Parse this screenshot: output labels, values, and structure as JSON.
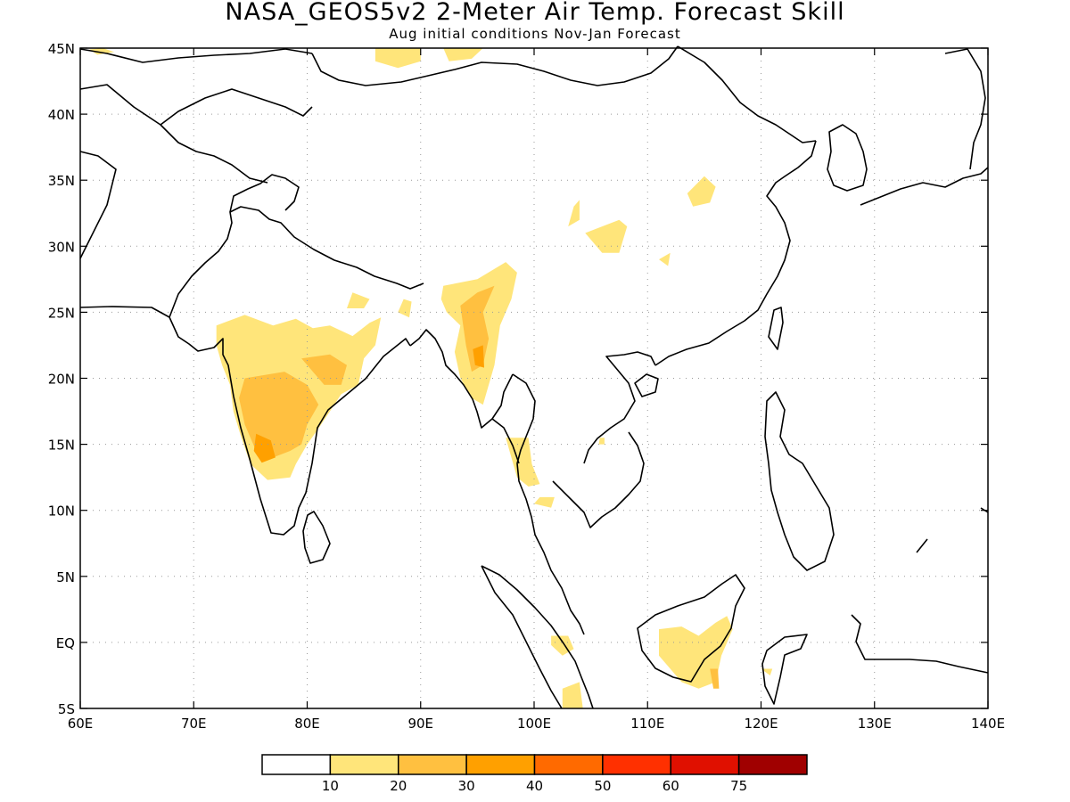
{
  "title": "NASA_GEOS5v2 2-Meter Air Temp. Forecast Skill",
  "subtitle": "Aug initial conditions  Nov-Jan Forecast",
  "map": {
    "lon_range": [
      60,
      140
    ],
    "lat_range": [
      -5,
      45
    ],
    "x_ticks": [
      {
        "lon": 60,
        "label": "60E"
      },
      {
        "lon": 70,
        "label": "70E"
      },
      {
        "lon": 80,
        "label": "80E"
      },
      {
        "lon": 90,
        "label": "90E"
      },
      {
        "lon": 100,
        "label": "100E"
      },
      {
        "lon": 110,
        "label": "110E"
      },
      {
        "lon": 120,
        "label": "120E"
      },
      {
        "lon": 130,
        "label": "130E"
      },
      {
        "lon": 140,
        "label": "140E"
      }
    ],
    "y_ticks": [
      {
        "lat": 45,
        "label": "45N"
      },
      {
        "lat": 40,
        "label": "40N"
      },
      {
        "lat": 35,
        "label": "35N"
      },
      {
        "lat": 30,
        "label": "30N"
      },
      {
        "lat": 25,
        "label": "25N"
      },
      {
        "lat": 20,
        "label": "20N"
      },
      {
        "lat": 15,
        "label": "15N"
      },
      {
        "lat": 10,
        "label": "10N"
      },
      {
        "lat": 5,
        "label": "5N"
      },
      {
        "lat": 0,
        "label": "EQ"
      },
      {
        "lat": -5,
        "label": "5S"
      }
    ],
    "grid": "dotted"
  },
  "colorbar": {
    "colors": [
      "#ffffff",
      "#ffe57a",
      "#ffc040",
      "#ffa000",
      "#ff6a00",
      "#ff3000",
      "#e01000",
      "#a00000"
    ],
    "labels": [
      "10",
      "20",
      "30",
      "40",
      "50",
      "60",
      "75"
    ]
  },
  "skill_regions": [
    {
      "level": 1,
      "points": [
        [
          60.8,
          44.9
        ],
        [
          62,
          45
        ],
        [
          63,
          44.7
        ],
        [
          61.5,
          44.5
        ]
      ]
    },
    {
      "level": 1,
      "points": [
        [
          86,
          45
        ],
        [
          90,
          45
        ],
        [
          90,
          44
        ],
        [
          88,
          43.5
        ],
        [
          86,
          44
        ]
      ]
    },
    {
      "level": 1,
      "points": [
        [
          92,
          45
        ],
        [
          95.5,
          45
        ],
        [
          94.5,
          44.2
        ],
        [
          92.5,
          44
        ]
      ]
    },
    {
      "level": 1,
      "points": [
        [
          72,
          24
        ],
        [
          74.5,
          24.8
        ],
        [
          77,
          24
        ],
        [
          79,
          24.5
        ],
        [
          80.5,
          23.8
        ],
        [
          82,
          24
        ],
        [
          84,
          23.2
        ],
        [
          85.5,
          24.2
        ],
        [
          86.5,
          24.6
        ],
        [
          86,
          22.5
        ],
        [
          85,
          21.5
        ],
        [
          84.5,
          19.5
        ],
        [
          83,
          18.8
        ],
        [
          82,
          17.5
        ],
        [
          81,
          16.2
        ],
        [
          80,
          15
        ],
        [
          79,
          13.5
        ],
        [
          78.5,
          12.5
        ],
        [
          76.5,
          12.3
        ],
        [
          75,
          13.5
        ],
        [
          74.2,
          15.5
        ],
        [
          73.5,
          17.5
        ],
        [
          73.2,
          19.5
        ],
        [
          72.5,
          21
        ],
        [
          72,
          22.5
        ]
      ]
    },
    {
      "level": 1,
      "points": [
        [
          83.5,
          25.3
        ],
        [
          85,
          25.3
        ],
        [
          85.5,
          26
        ],
        [
          84,
          26.5
        ]
      ]
    },
    {
      "level": 1,
      "points": [
        [
          88,
          25
        ],
        [
          89,
          24.6
        ],
        [
          89.2,
          25.8
        ],
        [
          88.5,
          26
        ]
      ]
    },
    {
      "level": 1,
      "points": [
        [
          92,
          27
        ],
        [
          95,
          27.5
        ],
        [
          97.5,
          28.8
        ],
        [
          98.5,
          28
        ],
        [
          98,
          26
        ],
        [
          97,
          24
        ],
        [
          96.5,
          21
        ],
        [
          95.5,
          18
        ],
        [
          94.5,
          18.5
        ],
        [
          93.5,
          20
        ],
        [
          93,
          22
        ],
        [
          93.5,
          24
        ],
        [
          92.3,
          25
        ],
        [
          91.8,
          26
        ]
      ]
    },
    {
      "level": 1,
      "points": [
        [
          97.5,
          15.5
        ],
        [
          99.5,
          15.5
        ],
        [
          99.8,
          13.5
        ],
        [
          100.5,
          12
        ],
        [
          99.5,
          11.8
        ],
        [
          98.5,
          12.5
        ],
        [
          98,
          14
        ]
      ]
    },
    {
      "level": 1,
      "points": [
        [
          100,
          10.5
        ],
        [
          101.5,
          10.2
        ],
        [
          101.8,
          11
        ],
        [
          100.5,
          11
        ]
      ]
    },
    {
      "level": 1,
      "points": [
        [
          105.7,
          15
        ],
        [
          106.2,
          15
        ],
        [
          106.2,
          15.5
        ],
        [
          105.8,
          15.5
        ]
      ]
    },
    {
      "level": 1,
      "points": [
        [
          104.5,
          31
        ],
        [
          107.5,
          32
        ],
        [
          108.2,
          31.5
        ],
        [
          107.5,
          29.5
        ],
        [
          106,
          29.5
        ]
      ]
    },
    {
      "level": 1,
      "points": [
        [
          103,
          31.5
        ],
        [
          104,
          32
        ],
        [
          104,
          33.5
        ],
        [
          103.5,
          33
        ]
      ]
    },
    {
      "level": 1,
      "points": [
        [
          113.5,
          34
        ],
        [
          115,
          35.3
        ],
        [
          116,
          34.5
        ],
        [
          115.5,
          33.3
        ],
        [
          114,
          33
        ]
      ]
    },
    {
      "level": 1,
      "points": [
        [
          111,
          29
        ],
        [
          112,
          29.5
        ],
        [
          111.8,
          28.5
        ]
      ]
    },
    {
      "level": 1,
      "points": [
        [
          111,
          1
        ],
        [
          113,
          1.2
        ],
        [
          114.5,
          0.5
        ],
        [
          116,
          1.5
        ],
        [
          117,
          2
        ],
        [
          117.5,
          1
        ],
        [
          116.5,
          -1
        ],
        [
          116,
          -3
        ],
        [
          114.5,
          -3.5
        ],
        [
          113,
          -3
        ],
        [
          112,
          -2
        ],
        [
          111,
          -1
        ]
      ]
    },
    {
      "level": 1,
      "points": [
        [
          101.5,
          0.5
        ],
        [
          103,
          0.5
        ],
        [
          103.5,
          -0.5
        ],
        [
          102.5,
          -1
        ],
        [
          101.5,
          -0.2
        ]
      ]
    },
    {
      "level": 1,
      "points": [
        [
          102.5,
          -3.5
        ],
        [
          104,
          -3
        ],
        [
          104.3,
          -5
        ],
        [
          102.5,
          -5
        ]
      ]
    },
    {
      "level": 1,
      "points": [
        [
          120,
          -2
        ],
        [
          121,
          -2
        ],
        [
          120.8,
          -2.5
        ]
      ]
    },
    {
      "level": 2,
      "points": [
        [
          74.5,
          20
        ],
        [
          78,
          20.5
        ],
        [
          80,
          19.5
        ],
        [
          81,
          18
        ],
        [
          80,
          16.5
        ],
        [
          79.5,
          15
        ],
        [
          78.5,
          14.5
        ],
        [
          77,
          14
        ],
        [
          75.5,
          14.5
        ],
        [
          74.5,
          16.5
        ],
        [
          74,
          18.5
        ]
      ]
    },
    {
      "level": 2,
      "points": [
        [
          79.5,
          21.5
        ],
        [
          82,
          21.8
        ],
        [
          83.5,
          21
        ],
        [
          83,
          19.5
        ],
        [
          81.5,
          19.5
        ]
      ]
    },
    {
      "level": 2,
      "points": [
        [
          93.5,
          25.5
        ],
        [
          95,
          26.5
        ],
        [
          96.5,
          27
        ],
        [
          95.5,
          25
        ],
        [
          96,
          23
        ],
        [
          95.5,
          21
        ],
        [
          94.5,
          20.5
        ],
        [
          94,
          22.5
        ]
      ]
    },
    {
      "level": 2,
      "points": [
        [
          115.5,
          -2
        ],
        [
          116.2,
          -2
        ],
        [
          116.3,
          -3.5
        ],
        [
          115.8,
          -3.5
        ]
      ]
    },
    {
      "level": 3,
      "points": [
        [
          75.5,
          15.8
        ],
        [
          76.8,
          15.3
        ],
        [
          77.2,
          14
        ],
        [
          76,
          13.6
        ],
        [
          75.3,
          14.5
        ]
      ]
    },
    {
      "level": 3,
      "points": [
        [
          94.6,
          22.2
        ],
        [
          95.5,
          22.5
        ],
        [
          95.6,
          20.8
        ],
        [
          94.8,
          21
        ]
      ]
    }
  ]
}
